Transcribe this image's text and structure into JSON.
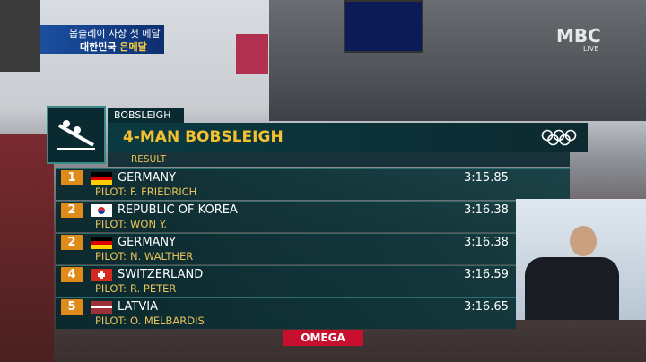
{
  "caption": {
    "line1": "봅슬레이 사상 첫 메달",
    "line2": [
      "대한민국",
      "은메달"
    ]
  },
  "broadcaster": {
    "logo": "MBC",
    "tag": "LIVE"
  },
  "header": {
    "sport": "BOBSLEIGH",
    "event": "4-MAN BOBSLEIGH",
    "subtitle": "RESULT"
  },
  "labels": {
    "pilot": "PILOT:"
  },
  "results": [
    {
      "rank": "1",
      "country": "GERMANY",
      "pilot": "F. FRIEDRICH",
      "time": "3:15.85"
    },
    {
      "rank": "2",
      "country": "REPUBLIC OF KOREA",
      "pilot": "WON Y.",
      "time": "3:16.38"
    },
    {
      "rank": "2",
      "country": "GERMANY",
      "pilot": "N. WALTHER",
      "time": "3:16.38"
    },
    {
      "rank": "4",
      "country": "SWITZERLAND",
      "pilot": "R. PETER",
      "time": "3:16.59"
    },
    {
      "rank": "5",
      "country": "LATVIA",
      "pilot": "O. MELBARDIS",
      "time": "3:16.65"
    }
  ],
  "sponsor": "OMEGA"
}
